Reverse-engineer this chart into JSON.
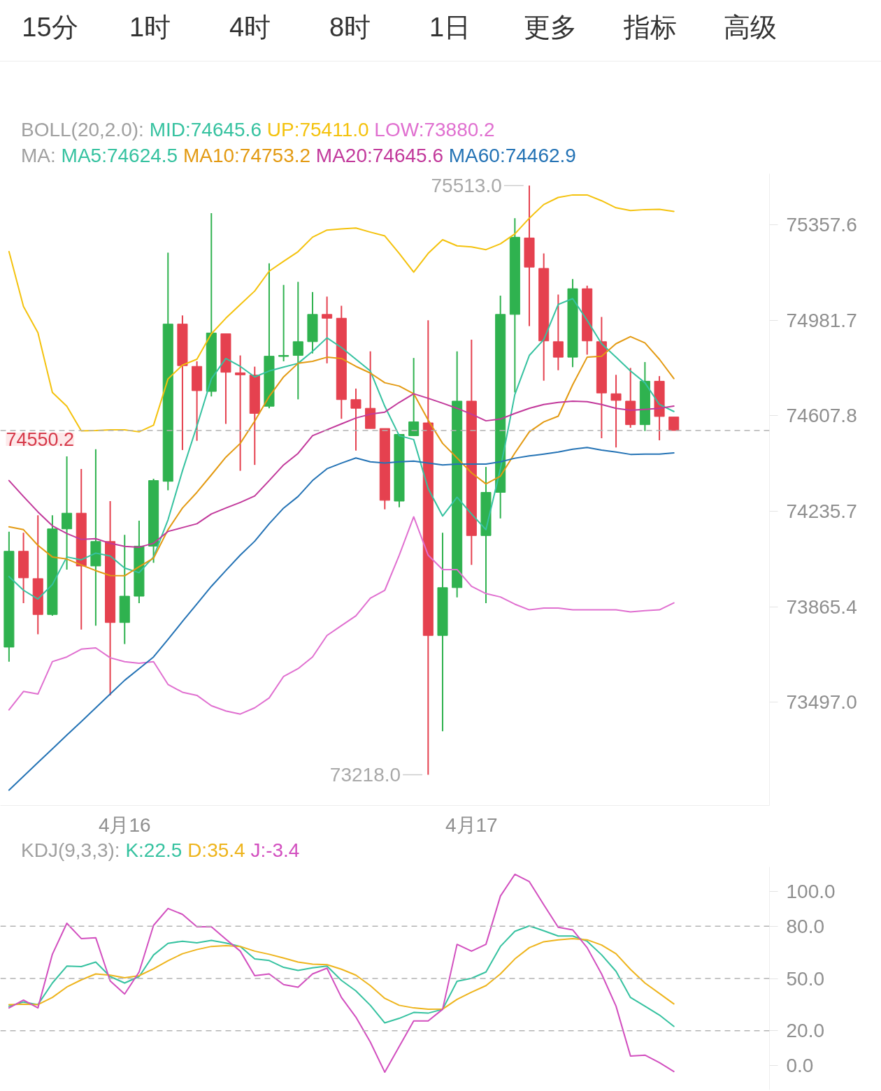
{
  "chart_data": [
    {
      "type": "other",
      "annotations": [
        "15分",
        "1时",
        "4时",
        "8时",
        "1日",
        "更多",
        "指标",
        "高级"
      ]
    },
    {
      "type": "candlestick",
      "legend": "top left",
      "log": true,
      "categories": [
        null,
        null,
        null,
        null,
        null,
        null,
        null,
        null,
        "4月16",
        null,
        null,
        null,
        null,
        null,
        null,
        null,
        null,
        null,
        null,
        null,
        null,
        null,
        null,
        null,
        null,
        null,
        null,
        null,
        null,
        null,
        null,
        null,
        "4月17",
        null,
        null,
        null,
        null,
        null,
        null,
        null,
        null,
        null,
        null,
        null,
        null,
        null,
        null
      ],
      "ohlc": [
        [
          73709,
          74156,
          73653,
          74080
        ],
        [
          74080,
          74152,
          73879,
          73977
        ],
        [
          73974,
          74220,
          73759,
          73835
        ],
        [
          73835,
          74220,
          73830,
          74167
        ],
        [
          74167,
          74449,
          74009,
          74228
        ],
        [
          74228,
          74400,
          73777,
          74023
        ],
        [
          74023,
          74477,
          73792,
          74118
        ],
        [
          74118,
          74275,
          73523,
          73804
        ],
        [
          73804,
          74144,
          73721,
          73906
        ],
        [
          73906,
          74199,
          73879,
          74100
        ],
        [
          74100,
          74362,
          74035,
          74355
        ],
        [
          74352,
          75248,
          74317,
          74967
        ],
        [
          74967,
          75001,
          74474,
          74804
        ],
        [
          74801,
          74821,
          74510,
          74706
        ],
        [
          74703,
          75404,
          74683,
          74932
        ],
        [
          74929,
          74929,
          74576,
          74778
        ],
        [
          74776,
          74844,
          74393,
          74768
        ],
        [
          74767,
          74800,
          74416,
          74617
        ],
        [
          74645,
          75206,
          74637,
          74841
        ],
        [
          74840,
          75121,
          74821,
          74844
        ],
        [
          74844,
          75133,
          74672,
          74898
        ],
        [
          74898,
          75093,
          74852,
          75005
        ],
        [
          75005,
          75075,
          74813,
          74990
        ],
        [
          74990,
          75039,
          74596,
          74671
        ],
        [
          74671,
          74714,
          74472,
          74637
        ],
        [
          74637,
          74860,
          74558,
          74558
        ],
        [
          74558,
          74558,
          74243,
          74278
        ],
        [
          74275,
          74535,
          74251,
          74535
        ],
        [
          74530,
          74834,
          74530,
          74584
        ],
        [
          74580,
          74982,
          73218.0,
          73754
        ],
        [
          73754,
          74152,
          73385,
          73939
        ],
        [
          73939,
          74860,
          73901,
          74665
        ],
        [
          74665,
          74906,
          74027,
          74141
        ],
        [
          74141,
          74408,
          73879,
          74309
        ],
        [
          74309,
          75079,
          74208,
          75005
        ],
        [
          75005,
          75384,
          74699,
          75309
        ],
        [
          75306,
          75513.0,
          74959,
          75191
        ],
        [
          75186,
          75245,
          74745,
          74901
        ],
        [
          74898,
          75083,
          74786,
          74837
        ],
        [
          74837,
          75144,
          74798,
          75106
        ],
        [
          75106,
          75118,
          74847,
          74901
        ],
        [
          74898,
          74995,
          74520,
          74697
        ],
        [
          74694,
          74768,
          74484,
          74668
        ],
        [
          74665,
          74795,
          74561,
          74573
        ],
        [
          74573,
          74818,
          74548,
          74743
        ],
        [
          74743,
          74763,
          74512,
          74605
        ],
        [
          74603,
          74603,
          74550.2,
          74550.2
        ]
      ],
      "colors": [
        "#2fb24f",
        "#e5414f",
        "#e5414f",
        "#2fb24f",
        "#2fb24f",
        "#e5414f",
        "#2fb24f",
        "#e5414f",
        "#2fb24f",
        "#2fb24f",
        "#2fb24f",
        "#2fb24f",
        "#e5414f",
        "#e5414f",
        "#2fb24f",
        "#e5414f",
        "#e5414f",
        "#e5414f",
        "#2fb24f",
        "#2fb24f",
        "#2fb24f",
        "#2fb24f",
        "#e5414f",
        "#e5414f",
        "#e5414f",
        "#e5414f",
        "#e5414f",
        "#2fb24f",
        "#2fb24f",
        "#e5414f",
        "#2fb24f",
        "#2fb24f",
        "#e5414f",
        "#2fb24f",
        "#2fb24f",
        "#2fb24f",
        "#e5414f",
        "#e5414f",
        "#e5414f",
        "#2fb24f",
        "#e5414f",
        "#e5414f",
        "#e5414f",
        "#e5414f",
        "#2fb24f",
        "#e5414f",
        "#e5414f"
      ],
      "series": [
        {
          "name": "MID:74645.6",
          "color": "#36c2a0",
          "type": "line",
          "values": [
            null,
            null,
            null,
            null,
            null,
            null,
            null,
            null,
            null,
            null,
            null,
            null,
            null,
            null,
            null,
            null,
            null,
            null,
            null,
            null,
            null,
            null,
            null,
            null,
            null,
            null,
            null,
            null,
            null,
            null,
            null,
            null,
            null,
            null,
            null,
            null,
            null,
            null,
            null,
            null,
            null,
            null,
            null,
            null,
            null,
            null,
            null
          ]
        },
        {
          "name": "UP:75411.0",
          "color": "#f4c20d",
          "type": "line",
          "values": [
            75252,
            75036,
            74933,
            74699,
            74645,
            74549,
            74550,
            74553,
            74553,
            74545,
            74571,
            74752,
            74806,
            74829,
            74929,
            74990,
            75044,
            75097,
            75175,
            75214,
            75252,
            75309,
            75337,
            75342,
            75345,
            75329,
            75314,
            75245,
            75171,
            75245,
            75299,
            75275,
            75271,
            75260,
            75283,
            75322,
            75384,
            75438,
            75466,
            75476,
            75476,
            75453,
            75425,
            75414,
            75418,
            75419,
            75411.0
          ]
        },
        {
          "name": "LOW:73880.2",
          "color": "#e070d0",
          "type": "line",
          "values": [
            73467,
            73538,
            73528,
            73653,
            73671,
            73701,
            73706,
            73668,
            73653,
            73647,
            73653,
            73565,
            73535,
            73523,
            73483,
            73463,
            73451,
            73475,
            73513,
            73596,
            73626,
            73671,
            73754,
            73792,
            73830,
            73898,
            73929,
            74065,
            74214,
            74065,
            74009,
            74009,
            73944,
            73916,
            73903,
            73875,
            73853,
            73860,
            73860,
            73853,
            73853,
            73853,
            73853,
            73845,
            73850,
            73853,
            73880.2
          ]
        },
        {
          "name": "MA5:74624.5",
          "color": "#36c2a0",
          "type": "line",
          "values": [
            73982,
            73929,
            73895,
            73951,
            74058,
            74047,
            74073,
            74062,
            74015,
            73997,
            74058,
            74202,
            74393,
            74568,
            74752,
            74832,
            74801,
            74760,
            74783,
            74798,
            74813,
            74860,
            74913,
            74875,
            74829,
            74783,
            74645,
            74530,
            74515,
            74324,
            74217,
            74290,
            74225,
            74164,
            74401,
            74691,
            74844,
            74906,
            75044,
            75067,
            74982,
            74890,
            74837,
            74783,
            74737,
            74652,
            74624.5
          ]
        },
        {
          "name": "MA10:74753.2",
          "color": "#e39a12",
          "type": "line",
          "values": [
            74175,
            74164,
            74103,
            74058,
            74050,
            74027,
            74005,
            73986,
            73985,
            74020,
            74053,
            74164,
            74248,
            74309,
            74377,
            74446,
            74500,
            74587,
            74683,
            74760,
            74813,
            74821,
            74837,
            74832,
            74801,
            74775,
            74737,
            74724,
            74694,
            74591,
            74500,
            74443,
            74385,
            74342,
            74372,
            74462,
            74545,
            74584,
            74606,
            74729,
            74837,
            74841,
            74890,
            74918,
            74893,
            74829,
            74753.2
          ]
        },
        {
          "name": "MA20:74645.6",
          "color": "#c2399b",
          "type": "line",
          "values": [
            74355,
            74293,
            74233,
            74179,
            74149,
            74126,
            74129,
            74111,
            74099,
            74096,
            74111,
            74157,
            74172,
            74187,
            74225,
            74248,
            74270,
            74295,
            74355,
            74416,
            74461,
            74530,
            74553,
            74576,
            74599,
            74614,
            74622,
            74660,
            74694,
            74676,
            74657,
            74637,
            74614,
            74588,
            74595,
            74617,
            74637,
            74652,
            74660,
            74665,
            74663,
            74652,
            74637,
            74629,
            74633,
            74637,
            74645.6
          ]
        },
        {
          "name": "MA60:74462.9",
          "color": "#2473b5",
          "type": "line",
          "values": [
            73159,
            73212,
            73265,
            73317,
            73370,
            73422,
            73475,
            73528,
            73581,
            73626,
            73671,
            73739,
            73808,
            73876,
            73944,
            74005,
            74065,
            74119,
            74187,
            74248,
            74293,
            74355,
            74401,
            74423,
            74443,
            74428,
            74423,
            74428,
            74431,
            74423,
            74416,
            74419,
            74419,
            74419,
            74428,
            74442,
            74451,
            74458,
            74466,
            74477,
            74484,
            74474,
            74466,
            74457,
            74458,
            74458,
            74462.9
          ]
        }
      ],
      "ylim": [
        73100,
        75560
      ],
      "yticks": [
        75357.6,
        74981.7,
        74607.8,
        74235.7,
        73865.4,
        {
          "value": 73497,
          "label": "73497.0"
        }
      ],
      "ref_lines": [
        {
          "axis": "y",
          "value": 74550.2,
          "label": "74550.2",
          "color": "#b3b3b3",
          "line_style": "dashed"
        }
      ],
      "annotations": [
        "BOLL(20,2.0):",
        "MA:",
        "75513.0",
        "73218.0"
      ]
    },
    {
      "type": "line",
      "legend": "top left",
      "tick_labels": "y",
      "categories": [
        null,
        null,
        null,
        null,
        null,
        null,
        null,
        null,
        null,
        null,
        null,
        null,
        null,
        null,
        null,
        null,
        null,
        null,
        null,
        null,
        null,
        null,
        null,
        null,
        null,
        null,
        null,
        null,
        null,
        null,
        null,
        null,
        null,
        null,
        null,
        null,
        null,
        null,
        null,
        null,
        null,
        null,
        null,
        null,
        null,
        null,
        null
      ],
      "series": [
        {
          "name": "K:22.5",
          "color": "#36c2a0",
          "values": [
            34.1,
            36.5,
            35.0,
            47.4,
            57.1,
            56.8,
            59.4,
            51.1,
            47.4,
            51.1,
            63.5,
            70.2,
            71.4,
            70.5,
            71.9,
            70.4,
            68.4,
            61.2,
            60.3,
            56.4,
            54.6,
            56.1,
            57.1,
            48.9,
            42.9,
            34.6,
            24.5,
            27.1,
            30.5,
            30.1,
            32.3,
            48.4,
            50.1,
            53.7,
            68.4,
            77.1,
            80.2,
            77.4,
            74.4,
            74.4,
            71.4,
            63.6,
            54.1,
            39.1,
            34.1,
            29.0,
            22.5
          ]
        },
        {
          "name": "D:35.4",
          "color": "#eeb41c",
          "values": [
            35.0,
            35.3,
            35.0,
            39.1,
            45.1,
            49.2,
            52.6,
            51.9,
            50.4,
            51.6,
            55.6,
            60.2,
            64.2,
            66.6,
            68.4,
            68.9,
            68.4,
            65.7,
            63.9,
            61.7,
            59.4,
            58.2,
            57.9,
            55.3,
            51.9,
            45.9,
            38.6,
            34.6,
            33.1,
            32.3,
            32.4,
            38.0,
            42.1,
            45.9,
            52.6,
            61.2,
            67.7,
            71.1,
            72.2,
            72.9,
            72.2,
            69.2,
            64.2,
            55.2,
            47.4,
            41.4,
            35.4
          ]
        },
        {
          "name": "J:-3.4",
          "color": "#d24fbf",
          "values": [
            33.1,
            37.6,
            33.1,
            63.9,
            81.7,
            72.9,
            73.4,
            48.6,
            41.1,
            53.7,
            80.5,
            90.2,
            86.8,
            79.7,
            79.7,
            72.6,
            65.7,
            51.6,
            52.6,
            46.5,
            45.0,
            52.6,
            55.9,
            39.1,
            27.8,
            13.5,
            -3.8,
            11.0,
            25.6,
            25.6,
            32.3,
            69.6,
            65.7,
            69.6,
            97.3,
            109.8,
            105.6,
            92.3,
            79.4,
            77.9,
            67.7,
            52.6,
            34.1,
            5.5,
            6.0,
            1.7,
            -3.4
          ]
        }
      ],
      "ylim": [
        -14,
        114
      ],
      "yticks": [
        {
          "value": 100,
          "label": "100.0"
        },
        {
          "value": 80,
          "label": "80.0"
        },
        {
          "value": 50,
          "label": "50.0"
        },
        {
          "value": 20,
          "label": "20.0"
        },
        {
          "value": 0,
          "label": "0.0"
        }
      ],
      "ref_lines": [
        {
          "axis": "y",
          "value": 80,
          "color": "#b3b3b3",
          "line_style": "dashed"
        },
        {
          "axis": "y",
          "value": 50,
          "color": "#b3b3b3",
          "line_style": "dashed"
        },
        {
          "axis": "y",
          "value": 20,
          "color": "#b3b3b3",
          "line_style": "dashed"
        }
      ],
      "annotations": [
        "KDJ(9,3,3):"
      ]
    }
  ]
}
